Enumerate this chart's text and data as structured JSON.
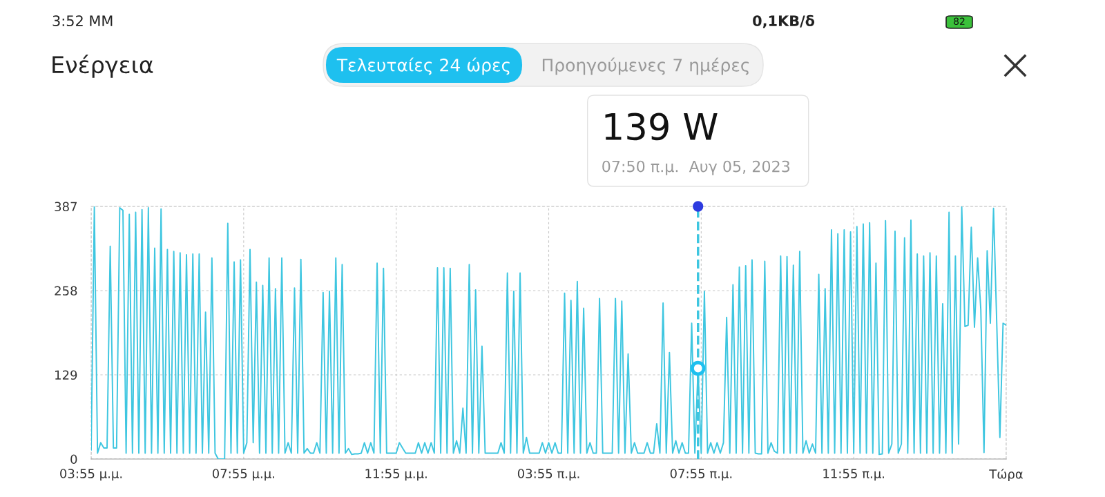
{
  "chart_data": {
    "type": "line",
    "title": "Ενέργεια",
    "x": [
      "2023-08-04T15:55",
      "2023-08-04T16:00",
      "2023-08-04T16:05",
      "2023-08-04T16:10",
      "2023-08-04T16:15",
      "2023-08-04T16:20",
      "2023-08-04T16:25",
      "2023-08-04T16:30",
      "2023-08-04T16:35",
      "2023-08-04T16:40",
      "2023-08-04T16:45",
      "2023-08-04T16:50",
      "2023-08-04T16:55",
      "2023-08-04T17:00",
      "2023-08-04T17:05",
      "2023-08-04T17:10",
      "2023-08-04T17:15",
      "2023-08-04T17:20",
      "2023-08-04T17:25",
      "2023-08-04T17:30",
      "2023-08-04T17:35",
      "2023-08-04T17:40",
      "2023-08-04T17:45",
      "2023-08-04T17:50",
      "2023-08-04T17:55",
      "2023-08-04T18:00",
      "2023-08-04T18:05",
      "2023-08-04T18:10",
      "2023-08-04T18:15",
      "2023-08-04T18:20",
      "2023-08-04T18:25",
      "2023-08-04T18:30",
      "2023-08-04T18:35",
      "2023-08-04T18:40",
      "2023-08-04T18:45",
      "2023-08-04T18:50",
      "2023-08-04T18:55",
      "2023-08-04T19:00",
      "2023-08-04T19:05",
      "2023-08-04T19:10",
      "2023-08-04T19:15",
      "2023-08-04T19:20",
      "2023-08-04T19:25",
      "2023-08-04T19:30",
      "2023-08-04T19:35",
      "2023-08-04T19:40",
      "2023-08-04T19:45",
      "2023-08-04T19:50",
      "2023-08-04T19:55",
      "2023-08-04T20:00",
      "2023-08-04T20:05",
      "2023-08-04T20:10",
      "2023-08-04T20:15",
      "2023-08-04T20:20",
      "2023-08-04T20:25",
      "2023-08-04T20:30",
      "2023-08-04T20:35",
      "2023-08-04T20:40",
      "2023-08-04T20:45",
      "2023-08-04T20:50",
      "2023-08-04T20:55",
      "2023-08-04T21:00",
      "2023-08-04T21:05",
      "2023-08-04T21:10",
      "2023-08-04T21:15",
      "2023-08-04T21:20",
      "2023-08-04T21:25",
      "2023-08-04T21:30",
      "2023-08-04T21:35",
      "2023-08-04T21:40",
      "2023-08-04T21:45",
      "2023-08-04T21:50",
      "2023-08-04T21:55",
      "2023-08-04T22:00",
      "2023-08-04T22:05",
      "2023-08-04T22:10",
      "2023-08-04T22:15",
      "2023-08-04T22:20",
      "2023-08-04T22:25",
      "2023-08-04T22:30",
      "2023-08-04T22:35",
      "2023-08-04T22:40",
      "2023-08-04T22:45",
      "2023-08-04T22:50",
      "2023-08-04T22:55",
      "2023-08-04T23:00",
      "2023-08-04T23:05",
      "2023-08-04T23:10",
      "2023-08-04T23:15",
      "2023-08-04T23:20",
      "2023-08-04T23:25",
      "2023-08-04T23:30",
      "2023-08-04T23:35",
      "2023-08-04T23:40",
      "2023-08-04T23:45",
      "2023-08-04T23:50",
      "2023-08-04T23:55",
      "2023-08-05T00:00",
      "2023-08-05T00:05",
      "2023-08-05T00:10",
      "2023-08-05T00:15",
      "2023-08-05T00:20",
      "2023-08-05T00:25",
      "2023-08-05T00:30",
      "2023-08-05T00:35",
      "2023-08-05T00:40",
      "2023-08-05T00:45",
      "2023-08-05T00:50",
      "2023-08-05T00:55",
      "2023-08-05T01:00",
      "2023-08-05T01:05",
      "2023-08-05T01:10",
      "2023-08-05T01:15",
      "2023-08-05T01:20",
      "2023-08-05T01:25",
      "2023-08-05T01:30",
      "2023-08-05T01:35",
      "2023-08-05T01:40",
      "2023-08-05T01:45",
      "2023-08-05T01:50",
      "2023-08-05T01:55",
      "2023-08-05T02:00",
      "2023-08-05T02:05",
      "2023-08-05T02:10",
      "2023-08-05T02:15",
      "2023-08-05T02:20",
      "2023-08-05T02:25",
      "2023-08-05T02:30",
      "2023-08-05T02:35",
      "2023-08-05T02:40",
      "2023-08-05T02:45",
      "2023-08-05T02:50",
      "2023-08-05T02:55",
      "2023-08-05T03:00",
      "2023-08-05T03:05",
      "2023-08-05T03:10",
      "2023-08-05T03:15",
      "2023-08-05T03:20",
      "2023-08-05T03:25",
      "2023-08-05T03:30",
      "2023-08-05T03:35",
      "2023-08-05T03:40",
      "2023-08-05T03:45",
      "2023-08-05T03:50",
      "2023-08-05T03:55",
      "2023-08-05T04:00",
      "2023-08-05T04:05",
      "2023-08-05T04:10",
      "2023-08-05T04:15",
      "2023-08-05T04:20",
      "2023-08-05T04:25",
      "2023-08-05T04:30",
      "2023-08-05T04:35",
      "2023-08-05T04:40",
      "2023-08-05T04:45",
      "2023-08-05T04:50",
      "2023-08-05T04:55",
      "2023-08-05T05:00",
      "2023-08-05T05:05",
      "2023-08-05T05:10",
      "2023-08-05T05:15",
      "2023-08-05T05:20",
      "2023-08-05T05:25",
      "2023-08-05T05:30",
      "2023-08-05T05:35",
      "2023-08-05T05:40",
      "2023-08-05T05:45",
      "2023-08-05T05:50",
      "2023-08-05T05:55",
      "2023-08-05T06:00",
      "2023-08-05T06:05",
      "2023-08-05T06:10",
      "2023-08-05T06:15",
      "2023-08-05T06:20",
      "2023-08-05T06:25",
      "2023-08-05T06:30",
      "2023-08-05T06:35",
      "2023-08-05T06:40",
      "2023-08-05T06:45",
      "2023-08-05T06:50",
      "2023-08-05T06:55",
      "2023-08-05T07:00",
      "2023-08-05T07:05",
      "2023-08-05T07:10",
      "2023-08-05T07:15",
      "2023-08-05T07:20",
      "2023-08-05T07:25",
      "2023-08-05T07:30",
      "2023-08-05T07:35",
      "2023-08-05T07:40",
      "2023-08-05T07:45",
      "2023-08-05T07:50",
      "2023-08-05T07:55",
      "2023-08-05T08:00",
      "2023-08-05T08:05",
      "2023-08-05T08:10",
      "2023-08-05T08:15",
      "2023-08-05T08:20",
      "2023-08-05T08:25",
      "2023-08-05T08:30",
      "2023-08-05T08:35",
      "2023-08-05T08:40",
      "2023-08-05T08:45",
      "2023-08-05T08:50",
      "2023-08-05T08:55",
      "2023-08-05T09:00",
      "2023-08-05T09:05",
      "2023-08-05T09:10",
      "2023-08-05T09:15",
      "2023-08-05T09:20",
      "2023-08-05T09:25",
      "2023-08-05T09:30",
      "2023-08-05T09:35",
      "2023-08-05T09:40",
      "2023-08-05T09:45",
      "2023-08-05T09:50",
      "2023-08-05T09:55",
      "2023-08-05T10:00",
      "2023-08-05T10:05",
      "2023-08-05T10:10",
      "2023-08-05T10:15",
      "2023-08-05T10:20",
      "2023-08-05T10:25",
      "2023-08-05T10:30",
      "2023-08-05T10:35",
      "2023-08-05T10:40",
      "2023-08-05T10:45",
      "2023-08-05T10:50",
      "2023-08-05T10:55",
      "2023-08-05T11:00",
      "2023-08-05T11:05",
      "2023-08-05T11:10",
      "2023-08-05T11:15",
      "2023-08-05T11:20",
      "2023-08-05T11:25",
      "2023-08-05T11:30",
      "2023-08-05T11:35",
      "2023-08-05T11:40",
      "2023-08-05T11:45",
      "2023-08-05T11:50",
      "2023-08-05T11:55",
      "2023-08-05T12:00",
      "2023-08-05T12:05",
      "2023-08-05T12:10",
      "2023-08-05T12:15",
      "2023-08-05T12:20",
      "2023-08-05T12:25",
      "2023-08-05T12:30",
      "2023-08-05T12:35",
      "2023-08-05T12:40",
      "2023-08-05T12:45",
      "2023-08-05T12:50",
      "2023-08-05T12:55",
      "2023-08-05T13:00",
      "2023-08-05T13:05",
      "2023-08-05T13:10",
      "2023-08-05T13:15",
      "2023-08-05T13:20",
      "2023-08-05T13:25",
      "2023-08-05T13:30",
      "2023-08-05T13:35",
      "2023-08-05T13:40",
      "2023-08-05T13:45",
      "2023-08-05T13:50",
      "2023-08-05T13:55",
      "2023-08-05T14:00",
      "2023-08-05T14:05",
      "2023-08-05T14:10",
      "2023-08-05T14:15",
      "2023-08-05T14:20",
      "2023-08-05T14:25",
      "2023-08-05T14:30",
      "2023-08-05T14:35",
      "2023-08-05T14:40",
      "2023-08-05T14:45",
      "2023-08-05T14:50",
      "2023-08-05T14:55",
      "2023-08-05T15:00",
      "2023-08-05T15:05",
      "2023-08-05T15:10",
      "2023-08-05T15:15",
      "2023-08-05T15:20",
      "2023-08-05T15:25",
      "2023-08-05T15:30",
      "2023-08-05T15:35",
      "2023-08-05T15:40",
      "2023-08-05T15:45",
      "2023-08-05T15:50",
      "2023-08-05T15:55"
    ],
    "series": [
      {
        "color": "#3ec6e0",
        "values": [
          14,
          386,
          9,
          25,
          17,
          17,
          326,
          17,
          17,
          385,
          381,
          9,
          375,
          9,
          378,
          9,
          382,
          9,
          385,
          9,
          323,
          9,
          383,
          9,
          321,
          9,
          318,
          9,
          316,
          9,
          313,
          9,
          314,
          9,
          314,
          9,
          225,
          9,
          308,
          9,
          0,
          0,
          0,
          361,
          9,
          302,
          9,
          305,
          9,
          25,
          321,
          25,
          271,
          9,
          266,
          9,
          308,
          9,
          261,
          9,
          308,
          9,
          25,
          9,
          262,
          9,
          306,
          9,
          16,
          9,
          9,
          25,
          9,
          255,
          9,
          257,
          9,
          308,
          9,
          298,
          9,
          16,
          7,
          8,
          8,
          9,
          25,
          9,
          25,
          9,
          300,
          9,
          292,
          9,
          9,
          9,
          9,
          25,
          17,
          9,
          9,
          9,
          9,
          25,
          9,
          25,
          9,
          25,
          9,
          293,
          9,
          293,
          9,
          292,
          9,
          28,
          9,
          78,
          9,
          298,
          9,
          259,
          9,
          173,
          9,
          9,
          9,
          9,
          9,
          25,
          9,
          285,
          9,
          257,
          9,
          285,
          9,
          33,
          9,
          9,
          9,
          9,
          25,
          9,
          25,
          9,
          25,
          9,
          9,
          254,
          9,
          243,
          9,
          272,
          9,
          231,
          9,
          25,
          9,
          9,
          246,
          9,
          9,
          9,
          9,
          246,
          9,
          242,
          9,
          161,
          9,
          25,
          9,
          9,
          9,
          25,
          9,
          9,
          54,
          9,
          239,
          9,
          163,
          9,
          28,
          9,
          25,
          9,
          9,
          208,
          9,
          139,
          9,
          257,
          9,
          25,
          9,
          25,
          9,
          25,
          217,
          9,
          267,
          9,
          294,
          9,
          296,
          9,
          305,
          9,
          8,
          8,
          303,
          9,
          25,
          12,
          9,
          311,
          9,
          310,
          9,
          297,
          9,
          318,
          9,
          28,
          9,
          23,
          9,
          283,
          9,
          261,
          9,
          351,
          9,
          345,
          9,
          351,
          9,
          348,
          9,
          356,
          9,
          360,
          9,
          362,
          9,
          300,
          7,
          8,
          365,
          9,
          23,
          349,
          9,
          23,
          339,
          9,
          366,
          9,
          314,
          9,
          311,
          9,
          316,
          9,
          311,
          9,
          238,
          9,
          378,
          9,
          311,
          23,
          386,
          203,
          205,
          355,
          202,
          308,
          229,
          10,
          319,
          208,
          384,
          210,
          33,
          208,
          205
        ]
      }
    ],
    "xlim": [
      "2023-08-04T15:55",
      "2023-08-05T15:55"
    ],
    "xticks": [
      {
        "value": "2023-08-04T15:55",
        "label": "03:55 μ.μ."
      },
      {
        "value": "2023-08-04T19:55",
        "label": "07:55 μ.μ."
      },
      {
        "value": "2023-08-04T23:55",
        "label": "11:55 μ.μ."
      },
      {
        "value": "2023-08-05T03:55",
        "label": "03:55 π.μ."
      },
      {
        "value": "2023-08-05T07:55",
        "label": "07:55 π.μ."
      },
      {
        "value": "2023-08-05T11:55",
        "label": "11:55 π.μ."
      },
      {
        "value": "2023-08-05T15:55",
        "label": "Τώρα"
      }
    ],
    "ylim": [
      0,
      387
    ],
    "yticks": [
      0,
      129,
      258,
      387
    ],
    "grid": true,
    "line_style": "solid",
    "ref_lines": [
      {
        "axis": "x",
        "value": "2023-08-05T07:50",
        "color": "#3ec6e0",
        "line_style": "dashed"
      }
    ],
    "annotations": [
      "139 W",
      "07:50 π.μ.  Αυγ 05, 2023",
      "Τελευταίες 24 ώρες",
      "Προηγούμενες 7 ημέρες",
      "3:52 ΜΜ",
      "0,1KB/δ",
      "82"
    ]
  }
}
